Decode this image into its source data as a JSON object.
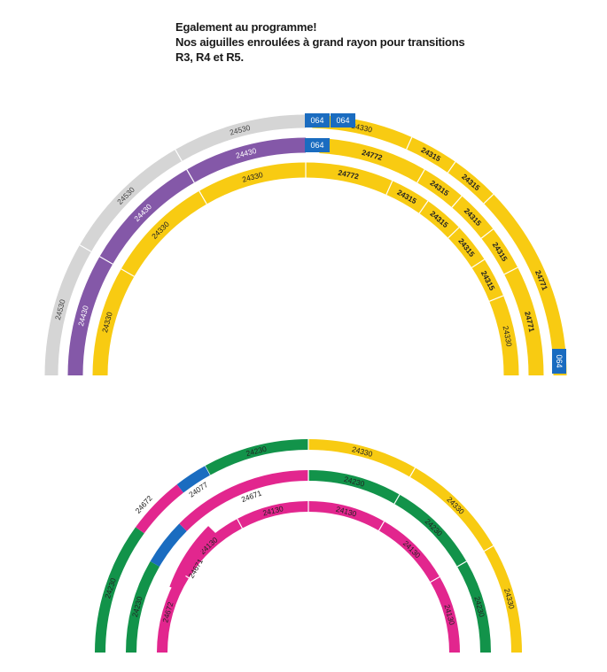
{
  "title": {
    "line1": "Egalement au programme!",
    "line2": "Nos aiguilles enroulées à grand rayon pour transitions",
    "line3": "R3, R4 et R5."
  },
  "colors": {
    "grey": "#d5d5d5",
    "purple": "#8458a8",
    "yellow": "#f8cb12",
    "blue": "#1a6cc0",
    "green": "#12934a",
    "pink": "#e2268e"
  },
  "top_diagram": {
    "outer_grey": [
      "24530",
      "24530",
      "24530"
    ],
    "purple": [
      "24430",
      "24430",
      "24430"
    ],
    "inner_yellow_left": [
      "24330",
      "24330",
      "24330"
    ],
    "blue_pieces": [
      "064",
      "064",
      "064",
      "064"
    ],
    "right_top": [
      "24330",
      "24315",
      "24315",
      "24771"
    ],
    "right_middle": [
      "24772",
      "24315",
      "24315",
      "24315",
      "24771"
    ],
    "right_inner": [
      "24772",
      "24315",
      "24315",
      "24315",
      "24315",
      "24330"
    ]
  },
  "bottom_diagram": {
    "outer_green": [
      "24230",
      "24230"
    ],
    "outer_yellow": [
      "24330",
      "24330",
      "24330"
    ],
    "blue_piece": "24077",
    "pink_switch": [
      "24672",
      "24671",
      "24671",
      "24672"
    ],
    "second_green": [
      "24230",
      "24230",
      "24230",
      "24230"
    ],
    "inner_pink": [
      "24130",
      "24130",
      "24130",
      "24130",
      "24130"
    ]
  }
}
